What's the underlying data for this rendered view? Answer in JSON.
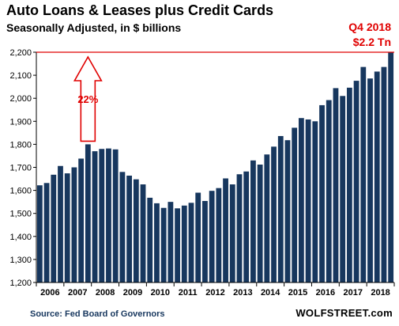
{
  "header": {
    "title": "Auto Loans & Leases plus Credit Cards",
    "subtitle": "Seasonally Adjusted, in $ billions"
  },
  "annotation": {
    "period": "Q4 2018",
    "value": "$2.2 Tn",
    "growth": "22%"
  },
  "footer": {
    "source": "Source: Fed Board of Governors",
    "brand": "WOLFSTREET.com"
  },
  "colors": {
    "bar": "#17375e",
    "accent": "#e00000"
  },
  "chart_data": {
    "type": "bar",
    "title": "Auto Loans & Leases plus Credit Cards",
    "ylabel": "",
    "xlabel": "",
    "ylim": [
      1200,
      2200
    ],
    "yticks": [
      "1,200",
      "1,300",
      "1,400",
      "1,500",
      "1,600",
      "1,700",
      "1,800",
      "1,900",
      "2,000",
      "2,100",
      "2,200"
    ],
    "xticks": [
      "2006",
      "2007",
      "2008",
      "2009",
      "2010",
      "2011",
      "2012",
      "2013",
      "2014",
      "2015",
      "2016",
      "2017",
      "2018"
    ],
    "grid": false,
    "reference_line": 2200,
    "values": [
      1622,
      1632,
      1668,
      1706,
      1674,
      1700,
      1738,
      1800,
      1770,
      1780,
      1782,
      1778,
      1680,
      1664,
      1648,
      1626,
      1568,
      1544,
      1524,
      1550,
      1522,
      1534,
      1546,
      1590,
      1554,
      1598,
      1610,
      1652,
      1626,
      1670,
      1682,
      1730,
      1712,
      1756,
      1790,
      1836,
      1818,
      1872,
      1914,
      1908,
      1900,
      1970,
      1992,
      2044,
      2010,
      2046,
      2076,
      2136,
      2086,
      2116,
      2136,
      2200
    ]
  }
}
